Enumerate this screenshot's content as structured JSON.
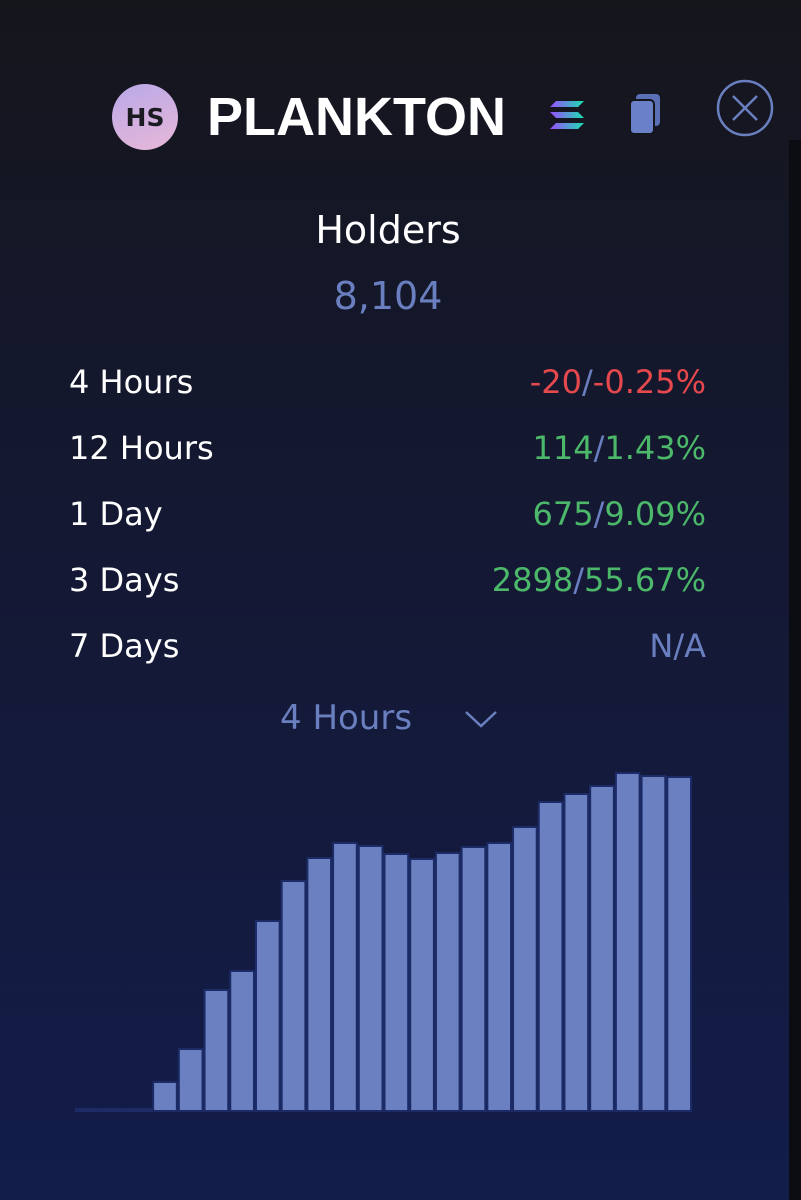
{
  "header": {
    "avatar": "HS",
    "title": "PLANKTON"
  },
  "summary": {
    "label": "Holders",
    "value": "8,104"
  },
  "separator": "/",
  "rows": [
    {
      "label": "4 Hours",
      "count": "-20",
      "percent": "-0.25%",
      "trend": "down"
    },
    {
      "label": "12 Hours",
      "count": "114",
      "percent": "1.43%",
      "trend": "up"
    },
    {
      "label": "1 Day",
      "count": "675",
      "percent": "9.09%",
      "trend": "up"
    },
    {
      "label": "3 Days",
      "count": "2898",
      "percent": "55.67%",
      "trend": "up"
    },
    {
      "label": "7 Days",
      "value": "N/A",
      "trend": "none"
    }
  ],
  "period_selector": "4 Hours",
  "chart_data": {
    "type": "bar",
    "color": "#6a80c0",
    "values": [
      2,
      2,
      2,
      29,
      62,
      121,
      140,
      190,
      230,
      253,
      268,
      265,
      257,
      252,
      258,
      264,
      268,
      284,
      309,
      317,
      325,
      338,
      335,
      334
    ]
  }
}
